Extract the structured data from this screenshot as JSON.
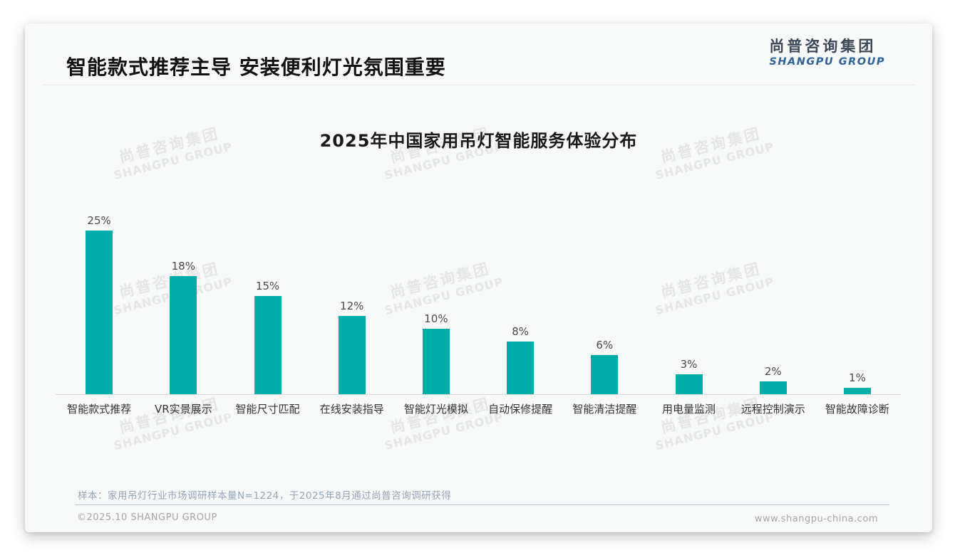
{
  "header": {
    "title": "智能款式推荐主导 安装便利灯光氛围重要",
    "logo_cn": "尚普咨询集团",
    "logo_en": "SHANGPU GROUP"
  },
  "chart_data": {
    "type": "bar",
    "title": "2025年中国家用吊灯智能服务体验分布",
    "categories": [
      "智能款式推荐",
      "VR实景展示",
      "智能尺寸匹配",
      "在线安装指导",
      "智能灯光模拟",
      "自动保修提醒",
      "智能清洁提醒",
      "用电量监测",
      "远程控制演示",
      "智能故障诊断"
    ],
    "values": [
      25,
      18,
      15,
      12,
      10,
      8,
      6,
      3,
      2,
      1
    ],
    "unit": "%",
    "xlabel": "",
    "ylabel": "",
    "ylim": [
      0,
      27
    ],
    "grid": false,
    "legend": false,
    "bar_color": "#00ADA8",
    "value_labels_shown": true
  },
  "watermark": {
    "line_cn": "尚普咨询集团",
    "line_en": "SHANGPU GROUP"
  },
  "footer": {
    "sample_note": "样本：家用吊灯行业市场调研样本量N=1224，于2025年8月通过尚普咨询调研获得",
    "copyright": "©2025.10 SHANGPU GROUP",
    "website": "www.shangpu-china.com"
  }
}
